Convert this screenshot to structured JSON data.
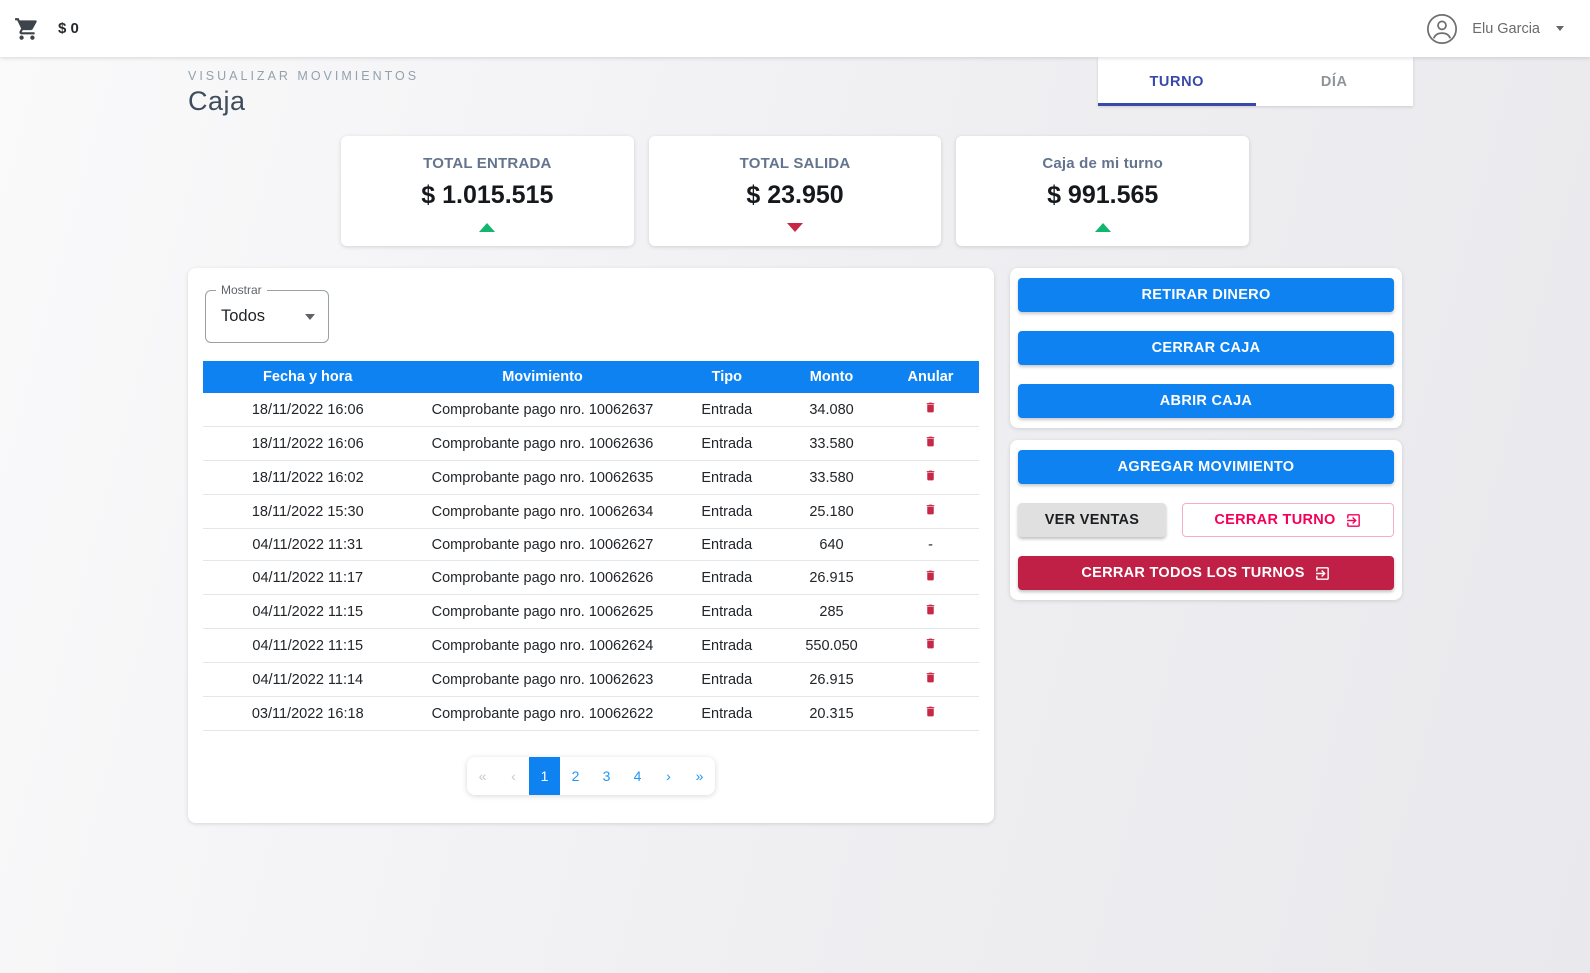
{
  "topbar": {
    "cart_total": "$ 0",
    "user_name": "Elu Garcia"
  },
  "header": {
    "eyebrow": "VISUALIZAR MOVIMIENTOS",
    "title": "Caja",
    "tabs": [
      {
        "label": "TURNO",
        "active": true
      },
      {
        "label": "DÍA",
        "active": false
      }
    ]
  },
  "summary_cards": [
    {
      "title": "TOTAL ENTRADA",
      "amount": "$ 1.015.515",
      "trend": "up"
    },
    {
      "title": "TOTAL SALIDA",
      "amount": "$ 23.950",
      "trend": "down"
    },
    {
      "title": "Caja de mi turno",
      "amount": "$ 991.565",
      "trend": "up"
    }
  ],
  "movements": {
    "filter_label": "Mostrar",
    "filter_value": "Todos",
    "columns": [
      "Fecha y hora",
      "Movimiento",
      "Tipo",
      "Monto",
      "Anular"
    ],
    "rows": [
      {
        "fecha": "18/11/2022 16:06",
        "movimiento": "Comprobante pago nro. 10062637",
        "tipo": "Entrada",
        "monto": "34.080",
        "anular": "trash"
      },
      {
        "fecha": "18/11/2022 16:06",
        "movimiento": "Comprobante pago nro. 10062636",
        "tipo": "Entrada",
        "monto": "33.580",
        "anular": "trash"
      },
      {
        "fecha": "18/11/2022 16:02",
        "movimiento": "Comprobante pago nro. 10062635",
        "tipo": "Entrada",
        "monto": "33.580",
        "anular": "trash"
      },
      {
        "fecha": "18/11/2022 15:30",
        "movimiento": "Comprobante pago nro. 10062634",
        "tipo": "Entrada",
        "monto": "25.180",
        "anular": "trash"
      },
      {
        "fecha": "04/11/2022 11:31",
        "movimiento": "Comprobante pago nro. 10062627",
        "tipo": "Entrada",
        "monto": "640",
        "anular": "-"
      },
      {
        "fecha": "04/11/2022 11:17",
        "movimiento": "Comprobante pago nro. 10062626",
        "tipo": "Entrada",
        "monto": "26.915",
        "anular": "trash"
      },
      {
        "fecha": "04/11/2022 11:15",
        "movimiento": "Comprobante pago nro. 10062625",
        "tipo": "Entrada",
        "monto": "285",
        "anular": "trash"
      },
      {
        "fecha": "04/11/2022 11:15",
        "movimiento": "Comprobante pago nro. 10062624",
        "tipo": "Entrada",
        "monto": "550.050",
        "anular": "trash"
      },
      {
        "fecha": "04/11/2022 11:14",
        "movimiento": "Comprobante pago nro. 10062623",
        "tipo": "Entrada",
        "monto": "26.915",
        "anular": "trash"
      },
      {
        "fecha": "03/11/2022 16:18",
        "movimiento": "Comprobante pago nro. 10062622",
        "tipo": "Entrada",
        "monto": "20.315",
        "anular": "trash"
      }
    ],
    "pagination": {
      "items": [
        {
          "label": "«",
          "state": "disabled"
        },
        {
          "label": "‹",
          "state": "disabled"
        },
        {
          "label": "1",
          "state": "active"
        },
        {
          "label": "2",
          "state": ""
        },
        {
          "label": "3",
          "state": ""
        },
        {
          "label": "4",
          "state": ""
        },
        {
          "label": "›",
          "state": ""
        },
        {
          "label": "»",
          "state": ""
        }
      ]
    }
  },
  "actions": {
    "retirar_dinero": "RETIRAR DINERO",
    "cerrar_caja": "CERRAR CAJA",
    "abrir_caja": "ABRIR CAJA",
    "agregar_movimiento": "AGREGAR MOVIMIENTO",
    "ver_ventas": "VER VENTAS",
    "cerrar_turno": "CERRAR TURNO",
    "cerrar_todos": "CERRAR TODOS LOS TURNOS"
  },
  "colors": {
    "accent_blue": "#0e82f1",
    "tab_indigo": "#3949ab",
    "crimson": "#c02045",
    "pink": "#f50057",
    "green_up": "#14b56e",
    "red_down": "#c62846"
  }
}
